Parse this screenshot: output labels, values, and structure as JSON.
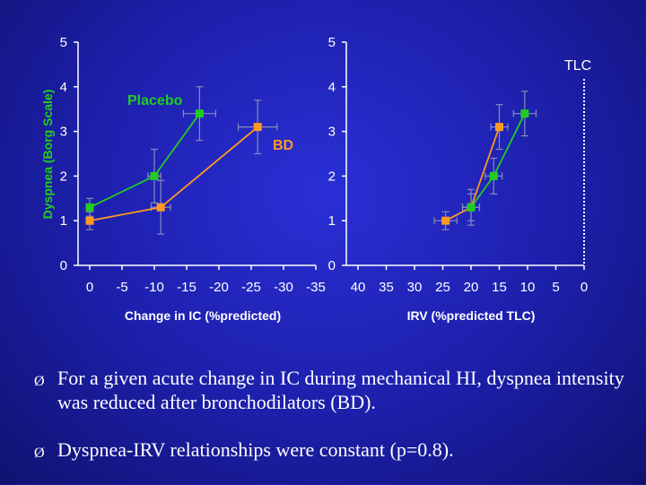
{
  "colors": {
    "background": "#1c1fa8",
    "placebo": "#22cc22",
    "bd": "#ff9922",
    "axis": "#ffffff",
    "ylabel": "#22cc22"
  },
  "chart_data": [
    {
      "type": "line",
      "xlabel": "Change in IC (%predicted)",
      "ylabel": "Dyspnea (Borg Scale)",
      "xlim": [
        0,
        -35
      ],
      "ylim": [
        0,
        5
      ],
      "xticks": [
        "0",
        "-5",
        "-10",
        "-15",
        "-20",
        "-25",
        "-30",
        "-35"
      ],
      "yticks": [
        "0",
        "1",
        "2",
        "3",
        "4",
        "5"
      ],
      "annotations": [
        "Placebo",
        "BD"
      ],
      "series": [
        {
          "name": "Placebo",
          "x": [
            0,
            -10,
            -17
          ],
          "y": [
            1.3,
            2.0,
            3.4
          ],
          "xerr": [
            0,
            1,
            2.5
          ],
          "yerr": [
            0.2,
            0.6,
            0.6
          ]
        },
        {
          "name": "BD",
          "x": [
            0,
            -11,
            -26
          ],
          "y": [
            1.0,
            1.3,
            3.1
          ],
          "xerr": [
            0,
            1.5,
            3
          ],
          "yerr": [
            0.2,
            0.6,
            0.6
          ]
        }
      ]
    },
    {
      "type": "line",
      "xlabel": "IRV (%predicted TLC)",
      "ylabel": "",
      "xlim": [
        40,
        0
      ],
      "ylim": [
        0,
        5
      ],
      "xticks": [
        "40",
        "35",
        "30",
        "25",
        "20",
        "15",
        "10",
        "5",
        "0"
      ],
      "yticks": [
        "0",
        "1",
        "2",
        "3",
        "4",
        "5"
      ],
      "annotations": [
        "TLC"
      ],
      "reference_line_x": 0,
      "series": [
        {
          "name": "Placebo",
          "x": [
            20,
            16,
            10.5
          ],
          "y": [
            1.3,
            2.0,
            3.4
          ],
          "xerr": [
            1.5,
            1.5,
            2
          ],
          "yerr": [
            0.3,
            0.4,
            0.5
          ]
        },
        {
          "name": "BD",
          "x": [
            24.5,
            20,
            15
          ],
          "y": [
            1.0,
            1.3,
            3.1
          ],
          "xerr": [
            2,
            1.5,
            1.5
          ],
          "yerr": [
            0.2,
            0.4,
            0.5
          ]
        }
      ]
    }
  ],
  "bullets": [
    "For a given acute change in IC during mechanical HI, dyspnea intensity was reduced after bronchodilators (BD).",
    "Dyspnea-IRV relationships were constant (p=0.8)."
  ],
  "bullet_symbol": "Ø"
}
